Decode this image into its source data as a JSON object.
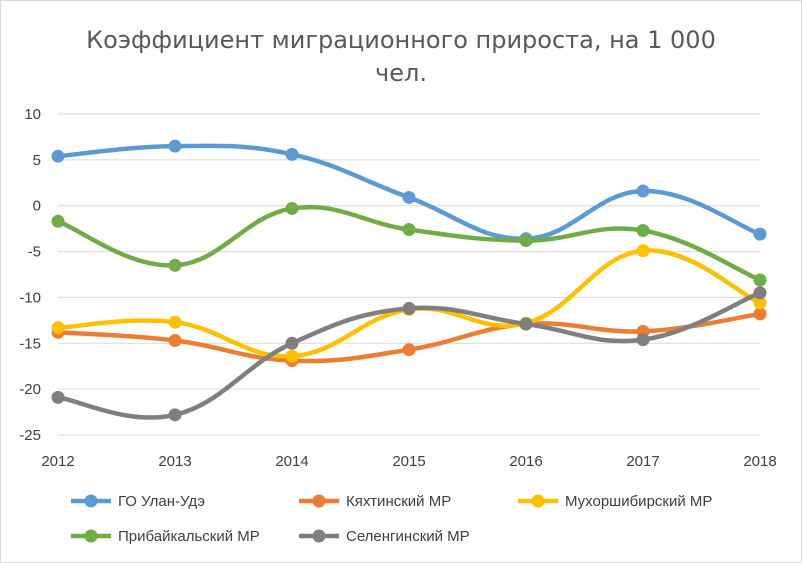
{
  "chart_data": {
    "type": "line",
    "title_line1": "Коэффициент миграционного прироста, на 1 000",
    "title_line2": "чел.",
    "xlabel": "",
    "ylabel": "",
    "categories": [
      "2012",
      "2013",
      "2014",
      "2015",
      "2016",
      "2017",
      "2018"
    ],
    "ylim": [
      -25,
      10
    ],
    "yticks": [
      10,
      5,
      0,
      -5,
      -10,
      -15,
      -20,
      -25
    ],
    "smooth": true,
    "grid": true,
    "legend_position": "bottom",
    "series": [
      {
        "name": "ГО Улан-Удэ",
        "color": "#5b9bd5",
        "values": [
          5.4,
          6.5,
          5.6,
          0.9,
          -3.6,
          1.6,
          -3.1
        ]
      },
      {
        "name": "Кяхтинский МР",
        "color": "#ed7d31",
        "values": [
          -13.8,
          -14.7,
          -16.9,
          -15.7,
          -12.9,
          -13.7,
          -11.8
        ]
      },
      {
        "name": "Мухоршибирский МР",
        "color": "#ffc000",
        "values": [
          -13.3,
          -12.7,
          -16.4,
          -11.3,
          -12.8,
          -4.9,
          -10.6
        ]
      },
      {
        "name": "Прибайкальский МР",
        "color": "#70ad47",
        "values": [
          -1.7,
          -6.5,
          -0.3,
          -2.6,
          -3.8,
          -2.7,
          -8.1
        ]
      },
      {
        "name": "Селенгинский МР",
        "color": "#7f7f7f",
        "values": [
          -20.9,
          -22.8,
          -15.0,
          -11.2,
          -12.9,
          -14.6,
          -9.5
        ]
      }
    ]
  }
}
